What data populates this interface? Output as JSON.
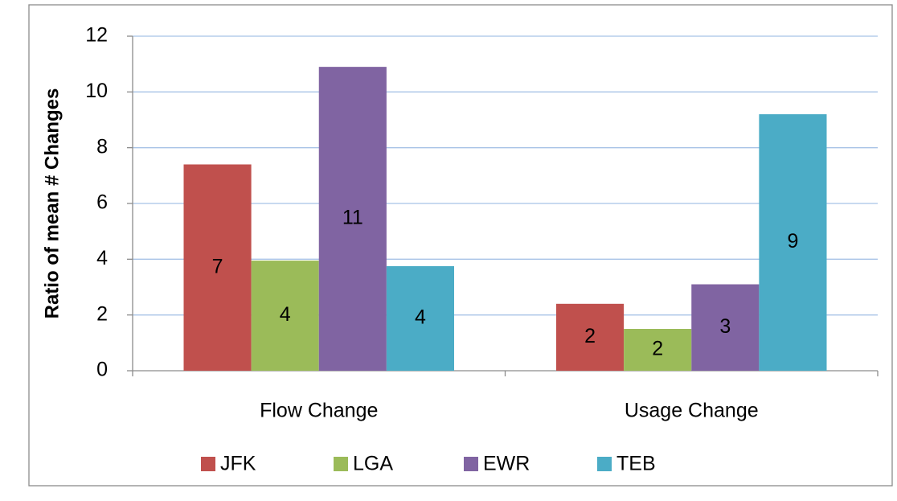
{
  "chart_data": {
    "type": "bar",
    "y_label": "Ratio of mean # Changes",
    "categories": [
      "Flow Change",
      "Usage Change"
    ],
    "series": [
      {
        "name": "JFK",
        "color": "#c0504d",
        "values": [
          7.4,
          2.4
        ],
        "value_labels": [
          "7",
          "2"
        ]
      },
      {
        "name": "LGA",
        "color": "#9bbb59",
        "values": [
          3.95,
          1.5
        ],
        "value_labels": [
          "4",
          "2"
        ]
      },
      {
        "name": "EWR",
        "color": "#8064a2",
        "values": [
          10.9,
          3.1
        ],
        "value_labels": [
          "11",
          "3"
        ]
      },
      {
        "name": "TEB",
        "color": "#4bacc6",
        "values": [
          3.75,
          9.2
        ],
        "value_labels": [
          "4",
          "9"
        ]
      }
    ],
    "ylim": [
      0,
      12
    ],
    "yticks": [
      0,
      2,
      4,
      6,
      8,
      10,
      12
    ],
    "grid": true,
    "legend": "bottom"
  }
}
